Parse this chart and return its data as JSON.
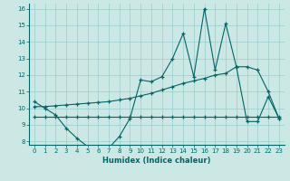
{
  "xlabel": "Humidex (Indice chaleur)",
  "bg_color": "#cce8e4",
  "grid_color": "#99cccc",
  "line_color": "#006666",
  "xlim": [
    -0.5,
    23.5
  ],
  "ylim": [
    7.8,
    16.3
  ],
  "yticks": [
    8,
    9,
    10,
    11,
    12,
    13,
    14,
    15,
    16
  ],
  "xticks": [
    0,
    1,
    2,
    3,
    4,
    5,
    6,
    7,
    8,
    9,
    10,
    11,
    12,
    13,
    14,
    15,
    16,
    17,
    18,
    19,
    20,
    21,
    22,
    23
  ],
  "line1_x": [
    0,
    1,
    2,
    3,
    4,
    5,
    6,
    7,
    8,
    9,
    10,
    11,
    12,
    13,
    14,
    15,
    16,
    17,
    18,
    19,
    20,
    21,
    22,
    23
  ],
  "line1_y": [
    10.4,
    10.0,
    9.6,
    8.8,
    8.2,
    7.7,
    7.6,
    7.6,
    8.3,
    9.4,
    11.7,
    11.6,
    11.9,
    13.0,
    14.5,
    11.9,
    16.0,
    12.3,
    15.1,
    12.5,
    9.2,
    9.2,
    10.7,
    9.4
  ],
  "line2_x": [
    0,
    1,
    2,
    3,
    4,
    5,
    6,
    7,
    8,
    9,
    10,
    11,
    12,
    13,
    14,
    15,
    16,
    17,
    18,
    19,
    20,
    21,
    22,
    23
  ],
  "line2_y": [
    9.5,
    9.5,
    9.5,
    9.5,
    9.5,
    9.5,
    9.5,
    9.5,
    9.5,
    9.5,
    9.5,
    9.5,
    9.5,
    9.5,
    9.5,
    9.5,
    9.5,
    9.5,
    9.5,
    9.5,
    9.5,
    9.5,
    9.5,
    9.5
  ],
  "line3_x": [
    0,
    1,
    2,
    3,
    4,
    5,
    6,
    7,
    8,
    9,
    10,
    11,
    12,
    13,
    14,
    15,
    16,
    17,
    18,
    19,
    20,
    21,
    22,
    23
  ],
  "line3_y": [
    10.1,
    10.1,
    10.15,
    10.2,
    10.25,
    10.3,
    10.35,
    10.4,
    10.5,
    10.6,
    10.75,
    10.9,
    11.1,
    11.3,
    11.5,
    11.65,
    11.8,
    12.0,
    12.1,
    12.5,
    12.5,
    12.3,
    11.0,
    9.4
  ]
}
